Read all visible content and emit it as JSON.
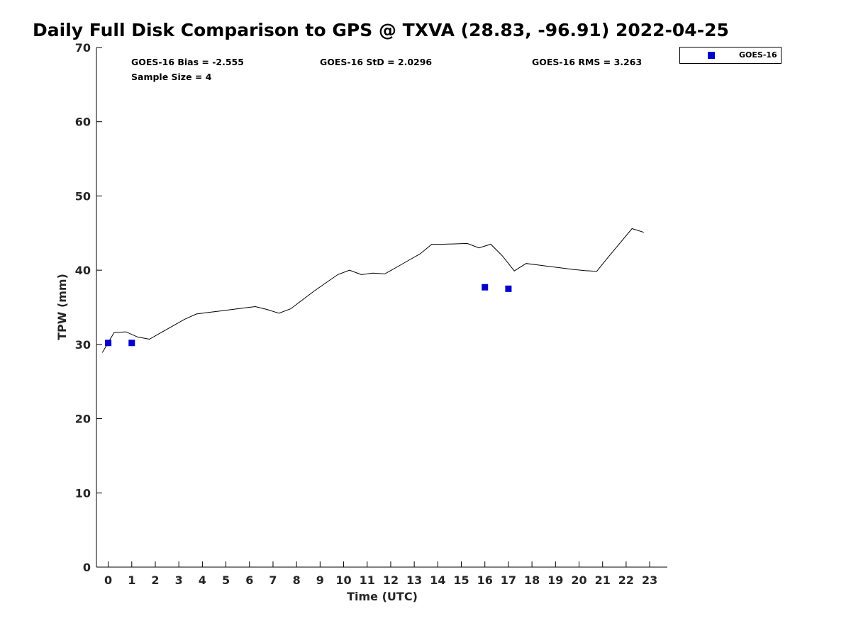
{
  "title": "Daily Full Disk Comparison to GPS @ TXVA (28.83, -96.91) 2022-04-25",
  "stats": {
    "bias": "GOES-16 Bias = -2.555",
    "std": "GOES-16 StD = 2.0296",
    "rms": "GOES-16 RMS = 3.263",
    "sample": "Sample Size = 4"
  },
  "legend": {
    "label": "GOES-16"
  },
  "colors": {
    "goes": "#0000CC",
    "gps_line": "#000000"
  },
  "chart_data": {
    "type": "line",
    "title": "Daily Full Disk Comparison to GPS @ TXVA (28.83, -96.91) 2022-04-25",
    "xlabel": "Time (UTC)",
    "ylabel": "TPW (mm)",
    "xlim": [
      -0.5,
      23.75
    ],
    "ylim": [
      0,
      70
    ],
    "xticks": [
      0,
      1,
      2,
      3,
      4,
      5,
      6,
      7,
      8,
      9,
      10,
      11,
      12,
      13,
      14,
      15,
      16,
      17,
      18,
      19,
      20,
      21,
      22,
      23
    ],
    "yticks": [
      0,
      10,
      20,
      30,
      40,
      50,
      60,
      70
    ],
    "grid": false,
    "legend_position": "top-right outside",
    "series": [
      {
        "style": "line",
        "color": "#000000",
        "x": [
          -0.25,
          0.25,
          0.75,
          1.25,
          1.75,
          2.25,
          2.75,
          3.25,
          3.75,
          4.25,
          4.75,
          5.25,
          5.75,
          6.25,
          6.75,
          7.25,
          7.75,
          8.25,
          8.75,
          9.25,
          9.75,
          10.25,
          10.75,
          11.25,
          11.75,
          12.25,
          12.75,
          13.25,
          13.75,
          14.25,
          14.75,
          15.25,
          15.75,
          16.25,
          16.75,
          17.25,
          17.75,
          18.25,
          18.75,
          19.25,
          19.75,
          20.25,
          20.75,
          21.25,
          21.75,
          22.25,
          22.75
        ],
        "y": [
          28.9,
          31.6,
          31.7,
          31.0,
          30.7,
          31.6,
          32.5,
          33.4,
          34.1,
          34.3,
          34.5,
          34.7,
          34.9,
          35.1,
          34.7,
          34.2,
          34.8,
          36.0,
          37.2,
          38.3,
          39.4,
          40.0,
          39.4,
          39.6,
          39.5,
          40.4,
          41.3,
          42.2,
          43.5,
          43.5,
          43.55,
          43.6,
          43.0,
          43.5,
          41.9,
          39.9,
          40.9,
          40.7,
          40.5,
          40.3,
          40.1,
          39.95,
          39.85,
          41.8,
          43.7,
          45.6,
          45.1
        ]
      },
      {
        "name": "GOES-16",
        "style": "scatter",
        "marker": "square",
        "color": "#0000CC",
        "x": [
          0,
          1,
          16,
          17
        ],
        "y": [
          30.2,
          30.2,
          37.7,
          37.5
        ]
      }
    ]
  }
}
